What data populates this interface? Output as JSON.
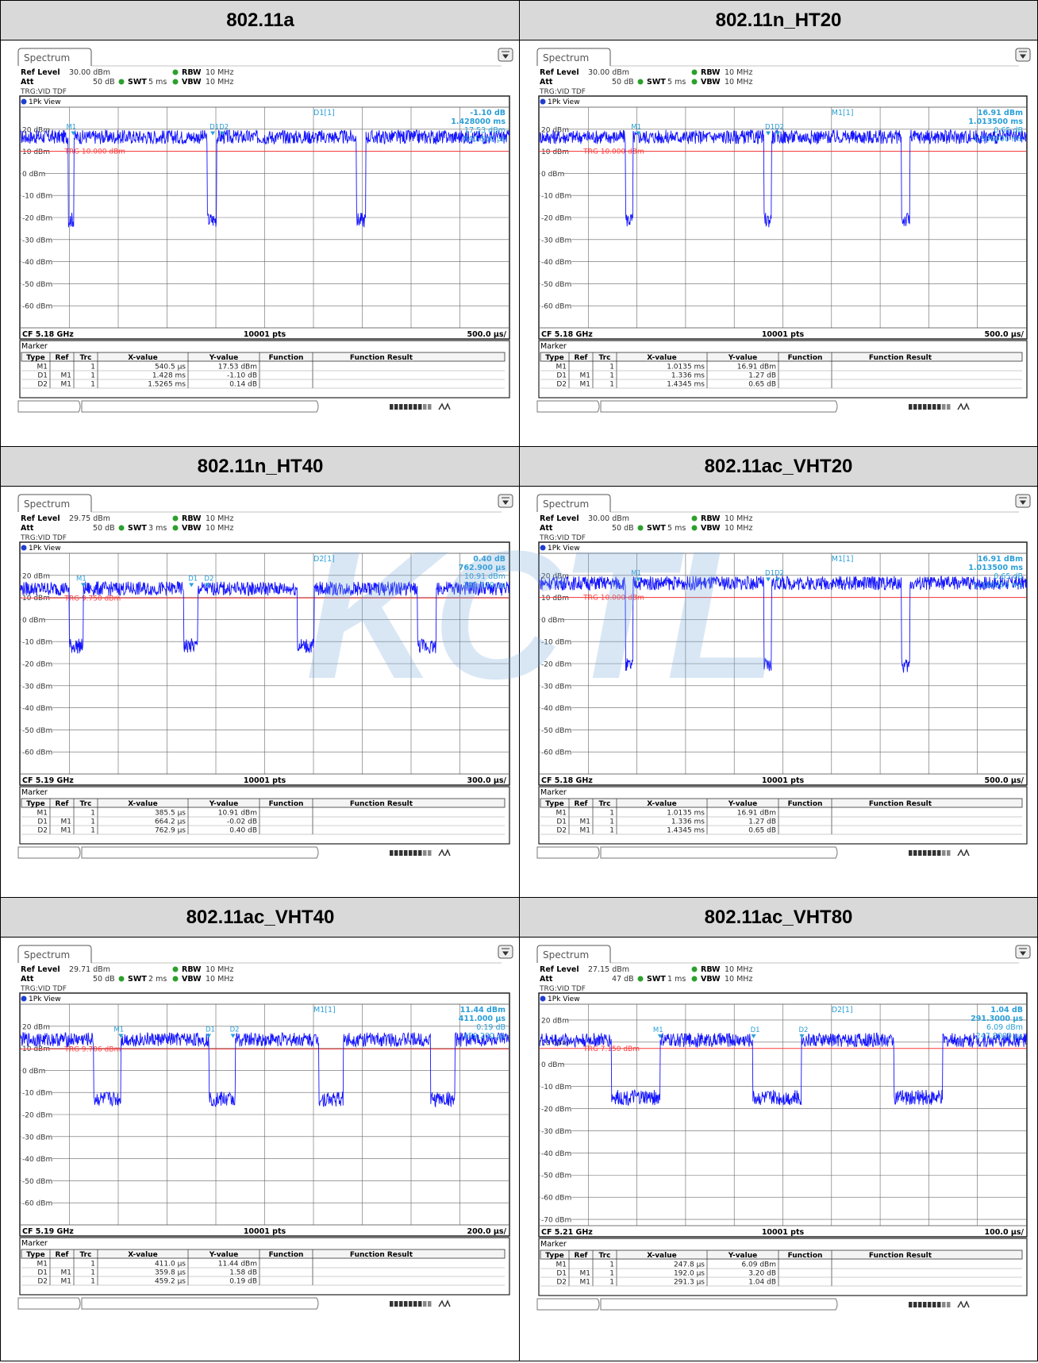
{
  "panels": [
    {
      "title": "802.11a",
      "app_tab": "Spectrum",
      "ref_level_label": "Ref Level",
      "ref_level": "30.00 dBm",
      "att_label": "Att",
      "att": "50 dB",
      "swt_label": "SWT",
      "swt": "5 ms",
      "rbw_label": "RBW",
      "rbw": "10 MHz",
      "vbw_label": "VBW",
      "vbw": "10 MHz",
      "trigger": "TRG:VID TDF",
      "view": "1Pk View",
      "trg_label": "TRG 10.000 dBm",
      "cf": "CF 5.18 GHz",
      "pts": "10001 pts",
      "div": "500.0 µs/",
      "marker_title": "Marker",
      "readout": {
        "name": "D1[1]",
        "line1": "-1.10 dB",
        "line2": "1.428000 ms",
        "line3": "17.53 dBm",
        "line4": "540.500 µs"
      },
      "chart_data": {
        "type": "line",
        "y_ticks": [
          "20 dBm",
          "10 dBm",
          "0 dBm",
          "-10 dBm",
          "-20 dBm",
          "-30 dBm",
          "-40 dBm",
          "-50 dBm",
          "-60 dBm"
        ],
        "ylim": [
          -70,
          30
        ],
        "xlim_ms": [
          0,
          5
        ],
        "trigger_level": 10.0,
        "on_level": 16.5,
        "off_level": -21,
        "off_segments_ms": [
          [
            0.485,
            0.54
          ],
          [
            1.913,
            2.0
          ],
          [
            3.44,
            3.53
          ]
        ],
        "markers": [
          {
            "x_ms": 0.5405,
            "label": "M1"
          },
          {
            "x_ms": 1.9685,
            "label": "D1"
          },
          {
            "x_ms": 2.067,
            "label": "D2"
          }
        ]
      },
      "table": {
        "headers": [
          "Type",
          "Ref",
          "Trc",
          "X-value",
          "Y-value",
          "Function",
          "Function Result"
        ],
        "rows": [
          [
            "M1",
            "",
            "1",
            "540.5 µs",
            "17.53 dBm",
            "",
            ""
          ],
          [
            "D1",
            "M1",
            "1",
            "1.428 ms",
            "-1.10 dB",
            "",
            ""
          ],
          [
            "D2",
            "M1",
            "1",
            "1.5265 ms",
            "0.14 dB",
            "",
            ""
          ]
        ]
      }
    },
    {
      "title": "802.11n_HT20",
      "app_tab": "Spectrum",
      "ref_level_label": "Ref Level",
      "ref_level": "30.00 dBm",
      "att_label": "Att",
      "att": "50 dB",
      "swt_label": "SWT",
      "swt": "5 ms",
      "rbw_label": "RBW",
      "rbw": "10 MHz",
      "vbw_label": "VBW",
      "vbw": "10 MHz",
      "trigger": "TRG:VID TDF",
      "view": "1Pk View",
      "trg_label": "TRG 10.000 dBm",
      "cf": "CF 5.18 GHz",
      "pts": "10001 pts",
      "div": "500.0 µs/",
      "marker_title": "Marker",
      "readout": {
        "name": "M1[1]",
        "line1": "16.91 dBm",
        "line2": "1.013500 ms",
        "line3": "0.65 dB",
        "line4": "1.336000 ms"
      },
      "chart_data": {
        "type": "line",
        "y_ticks": [
          "20 dBm",
          "10 dBm",
          "0 dBm",
          "-10 dBm",
          "-20 dBm",
          "-30 dBm",
          "-40 dBm",
          "-50 dBm",
          "-60 dBm"
        ],
        "ylim": [
          -70,
          30
        ],
        "xlim_ms": [
          0,
          5
        ],
        "trigger_level": 10.0,
        "on_level": 16.5,
        "off_level": -21,
        "off_segments_ms": [
          [
            0.88,
            0.96
          ],
          [
            2.3,
            2.38
          ],
          [
            3.72,
            3.8
          ]
        ],
        "markers": [
          {
            "x_ms": 1.0135,
            "label": "M1"
          },
          {
            "x_ms": 2.3495,
            "label": "D1"
          },
          {
            "x_ms": 2.448,
            "label": "D2"
          }
        ]
      },
      "table": {
        "headers": [
          "Type",
          "Ref",
          "Trc",
          "X-value",
          "Y-value",
          "Function",
          "Function Result"
        ],
        "rows": [
          [
            "M1",
            "",
            "1",
            "1.0135 ms",
            "16.91 dBm",
            "",
            ""
          ],
          [
            "D1",
            "M1",
            "1",
            "1.336 ms",
            "1.27 dB",
            "",
            ""
          ],
          [
            "D2",
            "M1",
            "1",
            "1.4345 ms",
            "0.65 dB",
            "",
            ""
          ]
        ]
      }
    },
    {
      "title": "802.11n_HT40",
      "app_tab": "Spectrum",
      "ref_level_label": "Ref Level",
      "ref_level": "29.75 dBm",
      "att_label": "Att",
      "att": "50 dB",
      "swt_label": "SWT",
      "swt": "3 ms",
      "rbw_label": "RBW",
      "rbw": "10 MHz",
      "vbw_label": "VBW",
      "vbw": "10 MHz",
      "trigger": "TRG:VID TDF",
      "view": "1Pk View",
      "trg_label": "TRG 9.750 dBm",
      "cf": "CF 5.19 GHz",
      "pts": "10001 pts",
      "div": "300.0 µs/",
      "marker_title": "Marker",
      "readout": {
        "name": "D2[1]",
        "line1": "0.40 dB",
        "line2": "762.900 µs",
        "line3": "10.91 dBm",
        "line4": "385.500 µs"
      },
      "chart_data": {
        "type": "line",
        "y_ticks": [
          "20 dBm",
          "10 dBm",
          "0 dBm",
          "-10 dBm",
          "-20 dBm",
          "-30 dBm",
          "-40 dBm",
          "-50 dBm",
          "-60 dBm"
        ],
        "ylim": [
          -70,
          30
        ],
        "xlim_ms": [
          0,
          3
        ],
        "trigger_level": 9.75,
        "on_level": 14,
        "off_level": -12,
        "off_segments_ms": [
          [
            0.3,
            0.385
          ],
          [
            1.0,
            1.085
          ],
          [
            1.7,
            1.8
          ],
          [
            2.44,
            2.55
          ]
        ],
        "markers": [
          {
            "x_ms": 0.3855,
            "label": "M1"
          },
          {
            "x_ms": 1.0497,
            "label": "D1"
          },
          {
            "x_ms": 1.1484,
            "label": "D2"
          }
        ]
      },
      "table": {
        "headers": [
          "Type",
          "Ref",
          "Trc",
          "X-value",
          "Y-value",
          "Function",
          "Function Result"
        ],
        "rows": [
          [
            "M1",
            "",
            "1",
            "385.5 µs",
            "10.91 dBm",
            "",
            ""
          ],
          [
            "D1",
            "M1",
            "1",
            "664.2 µs",
            "-0.02 dB",
            "",
            ""
          ],
          [
            "D2",
            "M1",
            "1",
            "762.9 µs",
            "0.40 dB",
            "",
            ""
          ]
        ]
      }
    },
    {
      "title": "802.11ac_VHT20",
      "app_tab": "Spectrum",
      "ref_level_label": "Ref Level",
      "ref_level": "30.00 dBm",
      "att_label": "Att",
      "att": "50 dB",
      "swt_label": "SWT",
      "swt": "5 ms",
      "rbw_label": "RBW",
      "rbw": "10 MHz",
      "vbw_label": "VBW",
      "vbw": "10 MHz",
      "trigger": "TRG:VID TDF",
      "view": "1Pk View",
      "trg_label": "TRG 10.000 dBm",
      "cf": "CF 5.18 GHz",
      "pts": "10001 pts",
      "div": "500.0 µs/",
      "marker_title": "Marker",
      "readout": {
        "name": "M1[1]",
        "line1": "16.91 dBm",
        "line2": "1.013500 ms",
        "line3": "0.65 dB",
        "line4": "1.336000 ms"
      },
      "chart_data": {
        "type": "line",
        "y_ticks": [
          "20 dBm",
          "10 dBm",
          "0 dBm",
          "-10 dBm",
          "-20 dBm",
          "-30 dBm",
          "-40 dBm",
          "-50 dBm",
          "-60 dBm"
        ],
        "ylim": [
          -70,
          30
        ],
        "xlim_ms": [
          0,
          5
        ],
        "trigger_level": 10.0,
        "on_level": 16.5,
        "off_level": -21,
        "off_segments_ms": [
          [
            0.88,
            0.96
          ],
          [
            2.3,
            2.38
          ],
          [
            3.72,
            3.8
          ]
        ],
        "markers": [
          {
            "x_ms": 1.0135,
            "label": "M1"
          },
          {
            "x_ms": 2.3495,
            "label": "D1"
          },
          {
            "x_ms": 2.448,
            "label": "D2"
          }
        ]
      },
      "table": {
        "headers": [
          "Type",
          "Ref",
          "Trc",
          "X-value",
          "Y-value",
          "Function",
          "Function Result"
        ],
        "rows": [
          [
            "M1",
            "",
            "1",
            "1.0135 ms",
            "16.91 dBm",
            "",
            ""
          ],
          [
            "D1",
            "M1",
            "1",
            "1.336 ms",
            "1.27 dB",
            "",
            ""
          ],
          [
            "D2",
            "M1",
            "1",
            "1.4345 ms",
            "0.65 dB",
            "",
            ""
          ]
        ]
      }
    },
    {
      "title": "802.11ac_VHT40",
      "app_tab": "Spectrum",
      "ref_level_label": "Ref Level",
      "ref_level": "29.71 dBm",
      "att_label": "Att",
      "att": "50 dB",
      "swt_label": "SWT",
      "swt": "2 ms",
      "rbw_label": "RBW",
      "rbw": "10 MHz",
      "vbw_label": "VBW",
      "vbw": "10 MHz",
      "trigger": "TRG:VID TDF",
      "view": "1Pk View",
      "trg_label": "TRG 9.706 dBm",
      "cf": "CF 5.19 GHz",
      "pts": "10001 pts",
      "div": "200.0 µs/",
      "marker_title": "Marker",
      "readout": {
        "name": "M1[1]",
        "line1": "11.44 dBm",
        "line2": "411.000 µs",
        "line3": "0.19 dB",
        "line4": "459.200 µs"
      },
      "chart_data": {
        "type": "line",
        "y_ticks": [
          "20 dBm",
          "10 dBm",
          "0 dBm",
          "-10 dBm",
          "-20 dBm",
          "-30 dBm",
          "-40 dBm",
          "-50 dBm",
          "-60 dBm"
        ],
        "ylim": [
          -70,
          30
        ],
        "xlim_ms": [
          0,
          2
        ],
        "trigger_level": 9.706,
        "on_level": 14,
        "off_level": -13,
        "off_segments_ms": [
          [
            0.3,
            0.41
          ],
          [
            0.77,
            0.88
          ],
          [
            1.22,
            1.32
          ],
          [
            1.68,
            1.78
          ]
        ],
        "markers": [
          {
            "x_ms": 0.411,
            "label": "M1"
          },
          {
            "x_ms": 0.7708,
            "label": "D1"
          },
          {
            "x_ms": 0.8702,
            "label": "D2"
          }
        ]
      },
      "table": {
        "headers": [
          "Type",
          "Ref",
          "Trc",
          "X-value",
          "Y-value",
          "Function",
          "Function Result"
        ],
        "rows": [
          [
            "M1",
            "",
            "1",
            "411.0 µs",
            "11.44 dBm",
            "",
            ""
          ],
          [
            "D1",
            "M1",
            "1",
            "359.8 µs",
            "1.58 dB",
            "",
            ""
          ],
          [
            "D2",
            "M1",
            "1",
            "459.2 µs",
            "0.19 dB",
            "",
            ""
          ]
        ]
      }
    },
    {
      "title": "802.11ac_VHT80",
      "app_tab": "Spectrum",
      "ref_level_label": "Ref Level",
      "ref_level": "27.15 dBm",
      "att_label": "Att",
      "att": "47 dB",
      "swt_label": "SWT",
      "swt": "1 ms",
      "rbw_label": "RBW",
      "rbw": "10 MHz",
      "vbw_label": "VBW",
      "vbw": "10 MHz",
      "trigger": "TRG:VID TDF",
      "view": "1Pk View",
      "trg_label": "TRG 7.150 dBm",
      "cf": "CF 5.21 GHz",
      "pts": "10001 pts",
      "div": "100.0 µs/",
      "marker_title": "Marker",
      "readout": {
        "name": "D2[1]",
        "line1": "1.04 dB",
        "line2": "291.3000 µs",
        "line3": "6.09 dBm",
        "line4": "247.8000 µs"
      },
      "chart_data": {
        "type": "line",
        "y_ticks": [
          "20 dBm",
          "10 dBm",
          "0 dBm",
          "-10 dBm",
          "-20 dBm",
          "-30 dBm",
          "-40 dBm",
          "-50 dBm",
          "-60 dBm",
          "-70 dBm"
        ],
        "ylim": [
          -72.85,
          27.15
        ],
        "xlim_ms": [
          0,
          1
        ],
        "trigger_level": 7.15,
        "on_level": 11,
        "off_level": -15,
        "off_segments_ms": [
          [
            0.148,
            0.248
          ],
          [
            0.438,
            0.538
          ],
          [
            0.728,
            0.828
          ]
        ],
        "markers": [
          {
            "x_ms": 0.2478,
            "label": "M1"
          },
          {
            "x_ms": 0.4398,
            "label": "D1"
          },
          {
            "x_ms": 0.5391,
            "label": "D2"
          }
        ]
      },
      "table": {
        "headers": [
          "Type",
          "Ref",
          "Trc",
          "X-value",
          "Y-value",
          "Function",
          "Function Result"
        ],
        "rows": [
          [
            "M1",
            "",
            "1",
            "247.8 µs",
            "6.09 dBm",
            "",
            ""
          ],
          [
            "D1",
            "M1",
            "1",
            "192.0 µs",
            "3.20 dB",
            "",
            ""
          ],
          [
            "D2",
            "M1",
            "1",
            "291.3 µs",
            "1.04 dB",
            "",
            ""
          ]
        ]
      }
    }
  ],
  "watermark": "KCTL",
  "colors": {
    "trace": "#1414ff",
    "trigger": "#ff3b3b",
    "marker": "#2a9fd8",
    "frame": "#222222"
  }
}
